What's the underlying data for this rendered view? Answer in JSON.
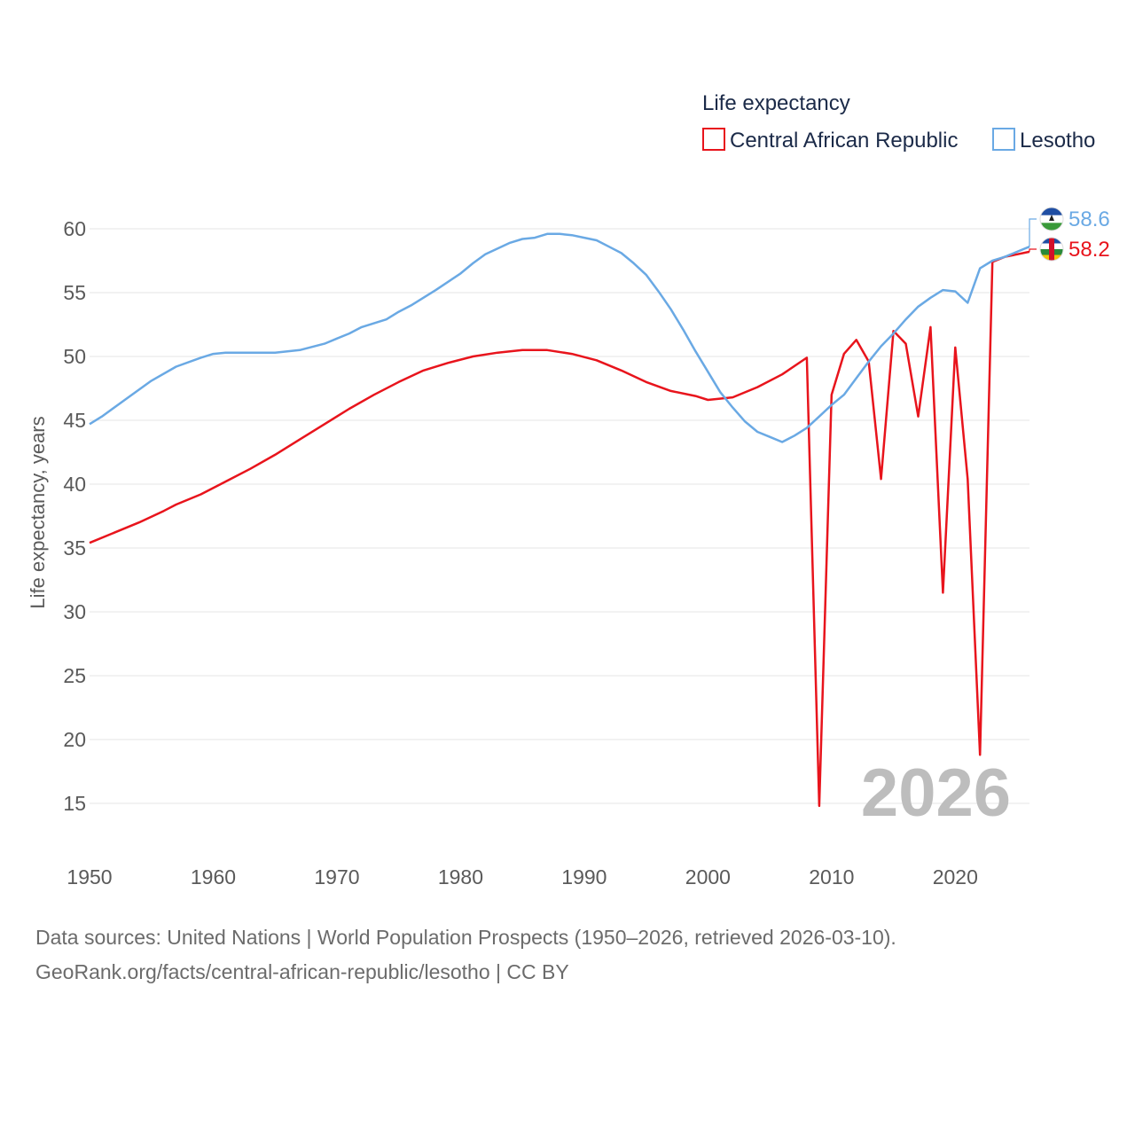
{
  "chart_data": {
    "type": "line",
    "legend_title": "Life expectancy",
    "ylabel": "Life expectancy, years",
    "xlabel": "",
    "ylim": [
      12.5,
      62.5
    ],
    "xlim": [
      1950,
      2026
    ],
    "yticks": [
      15,
      20,
      25,
      30,
      35,
      40,
      45,
      50,
      55,
      60
    ],
    "xticks": [
      1950,
      1960,
      1970,
      1980,
      1990,
      2000,
      2010,
      2020
    ],
    "year_label": "2026",
    "legend_placement": "top-right",
    "grid": true,
    "series": [
      {
        "name": "Central African Republic",
        "color": "#e8141c",
        "end_label": "58.2",
        "x": [
          1950,
          1952,
          1954,
          1956,
          1957,
          1959,
          1961,
          1963,
          1965,
          1967,
          1969,
          1971,
          1973,
          1975,
          1977,
          1979,
          1981,
          1983,
          1985,
          1987,
          1989,
          1991,
          1993,
          1995,
          1997,
          1999,
          2000,
          2002,
          2004,
          2006,
          2008,
          2009,
          2010,
          2011,
          2012,
          2013,
          2014,
          2015,
          2016,
          2017,
          2018,
          2019,
          2020,
          2021,
          2022,
          2023,
          2024,
          2025,
          2026
        ],
        "values": [
          35.4,
          36.2,
          37.0,
          37.9,
          38.4,
          39.2,
          40.2,
          41.2,
          42.3,
          43.5,
          44.7,
          45.9,
          47.0,
          48.0,
          48.9,
          49.5,
          50.0,
          50.3,
          50.5,
          50.5,
          50.2,
          49.7,
          48.9,
          48.0,
          47.3,
          46.9,
          46.6,
          46.8,
          47.6,
          48.6,
          49.9,
          14.8,
          47.0,
          50.2,
          51.3,
          49.6,
          40.4,
          52.0,
          51.0,
          45.3,
          52.3,
          31.5,
          50.7,
          40.4,
          18.8,
          57.4,
          57.8,
          58.0,
          58.2
        ]
      },
      {
        "name": "Lesotho",
        "color": "#6aa9e4",
        "end_label": "58.6",
        "x": [
          1950,
          1951,
          1953,
          1955,
          1957,
          1959,
          1960,
          1961,
          1963,
          1965,
          1967,
          1969,
          1970,
          1971,
          1972,
          1974,
          1975,
          1976,
          1978,
          1980,
          1981,
          1982,
          1984,
          1985,
          1986,
          1987,
          1988,
          1989,
          1990,
          1991,
          1992,
          1993,
          1994,
          1995,
          1996,
          1997,
          1998,
          1999,
          2000,
          2001,
          2002,
          2003,
          2004,
          2005,
          2006,
          2007,
          2008,
          2009,
          2010,
          2011,
          2012,
          2013,
          2014,
          2015,
          2016,
          2017,
          2018,
          2019,
          2020,
          2021,
          2022,
          2023,
          2024,
          2025,
          2026
        ],
        "values": [
          44.7,
          45.3,
          46.7,
          48.1,
          49.2,
          49.9,
          50.2,
          50.3,
          50.3,
          50.3,
          50.5,
          51.0,
          51.4,
          51.8,
          52.3,
          52.9,
          53.5,
          54.0,
          55.2,
          56.5,
          57.3,
          58.0,
          58.9,
          59.2,
          59.3,
          59.6,
          59.6,
          59.5,
          59.3,
          59.1,
          58.6,
          58.1,
          57.3,
          56.4,
          55.1,
          53.7,
          52.1,
          50.4,
          48.8,
          47.2,
          46.0,
          44.9,
          44.1,
          43.7,
          43.3,
          43.8,
          44.4,
          45.3,
          46.2,
          47.0,
          48.3,
          49.6,
          50.8,
          51.8,
          52.9,
          53.9,
          54.6,
          55.2,
          55.1,
          54.2,
          56.9,
          57.5,
          57.8,
          58.2,
          58.6
        ]
      }
    ]
  },
  "source": {
    "line1": "Data sources: United Nations | World Population Prospects (1950–2026, retrieved 2026-03-10).",
    "line2": "GeoRank.org/facts/central-african-republic/lesotho | CC BY"
  }
}
